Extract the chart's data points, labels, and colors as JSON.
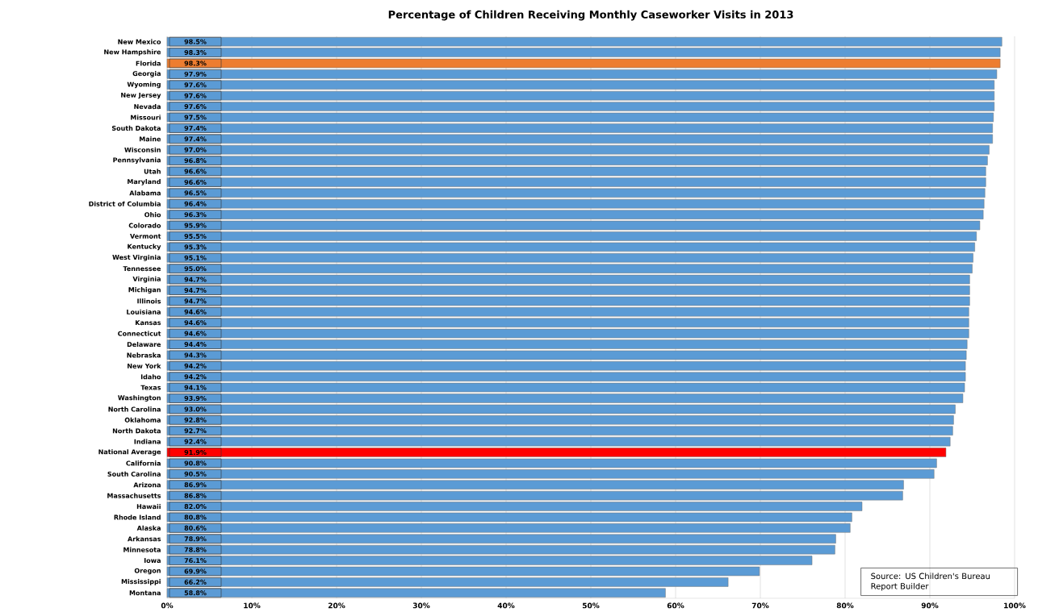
{
  "chart_data": {
    "type": "bar",
    "orientation": "horizontal",
    "title": "Percentage of Children Receiving Monthly Caseworker Visits in 2013",
    "categories": [
      "New Mexico",
      "New Hampshire",
      "Florida",
      "Georgia",
      "Wyoming",
      "New Jersey",
      "Nevada",
      "Missouri",
      "South Dakota",
      "Maine",
      "Wisconsin",
      "Pennsylvania",
      "Utah",
      "Maryland",
      "Alabama",
      "District of Columbia",
      "Ohio",
      "Colorado",
      "Vermont",
      "Kentucky",
      "West Virginia",
      "Tennessee",
      "Virginia",
      "Michigan",
      "Illinois",
      "Louisiana",
      "Kansas",
      "Connecticut",
      "Delaware",
      "Nebraska",
      "New York",
      "Idaho",
      "Texas",
      "Washington",
      "North Carolina",
      "Oklahoma",
      "North Dakota",
      "Indiana",
      "National Average",
      "California",
      "South Carolina",
      "Arizona",
      "Massachusetts",
      "Hawaii",
      "Rhode Island",
      "Alaska",
      "Arkansas",
      "Minnesota",
      "Iowa",
      "Oregon",
      "Mississippi",
      "Montana"
    ],
    "values": [
      98.5,
      98.3,
      98.3,
      97.9,
      97.6,
      97.6,
      97.6,
      97.5,
      97.4,
      97.4,
      97.0,
      96.8,
      96.6,
      96.6,
      96.5,
      96.4,
      96.3,
      95.9,
      95.5,
      95.3,
      95.1,
      95.0,
      94.7,
      94.7,
      94.7,
      94.6,
      94.6,
      94.6,
      94.4,
      94.3,
      94.2,
      94.2,
      94.1,
      93.9,
      93.0,
      92.8,
      92.7,
      92.4,
      91.9,
      90.8,
      90.5,
      86.9,
      86.8,
      82.0,
      80.8,
      80.6,
      78.9,
      78.8,
      76.1,
      69.9,
      66.2,
      58.8
    ],
    "value_labels": [
      "98.5%",
      "98.3%",
      "98.3%",
      "97.9%",
      "97.6%",
      "97.6%",
      "97.6%",
      "97.5%",
      "97.4%",
      "97.4%",
      "97.0%",
      "96.8%",
      "96.6%",
      "96.6%",
      "96.5%",
      "96.4%",
      "96.3%",
      "95.9%",
      "95.5%",
      "95.3%",
      "95.1%",
      "95.0%",
      "94.7%",
      "94.7%",
      "94.7%",
      "94.6%",
      "94.6%",
      "94.6%",
      "94.4%",
      "94.3%",
      "94.2%",
      "94.2%",
      "94.1%",
      "93.9%",
      "93.0%",
      "92.8%",
      "92.7%",
      "92.4%",
      "91.9%",
      "90.8%",
      "90.5%",
      "86.9%",
      "86.8%",
      "82.0%",
      "80.8%",
      "80.6%",
      "78.9%",
      "78.8%",
      "76.1%",
      "69.9%",
      "66.2%",
      "58.8%"
    ],
    "colors": [
      "#5b9bd5",
      "#5b9bd5",
      "#ed7d31",
      "#5b9bd5",
      "#5b9bd5",
      "#5b9bd5",
      "#5b9bd5",
      "#5b9bd5",
      "#5b9bd5",
      "#5b9bd5",
      "#5b9bd5",
      "#5b9bd5",
      "#5b9bd5",
      "#5b9bd5",
      "#5b9bd5",
      "#5b9bd5",
      "#5b9bd5",
      "#5b9bd5",
      "#5b9bd5",
      "#5b9bd5",
      "#5b9bd5",
      "#5b9bd5",
      "#5b9bd5",
      "#5b9bd5",
      "#5b9bd5",
      "#5b9bd5",
      "#5b9bd5",
      "#5b9bd5",
      "#5b9bd5",
      "#5b9bd5",
      "#5b9bd5",
      "#5b9bd5",
      "#5b9bd5",
      "#5b9bd5",
      "#5b9bd5",
      "#5b9bd5",
      "#5b9bd5",
      "#5b9bd5",
      "#ff0000",
      "#5b9bd5",
      "#5b9bd5",
      "#5b9bd5",
      "#5b9bd5",
      "#5b9bd5",
      "#5b9bd5",
      "#5b9bd5",
      "#5b9bd5",
      "#5b9bd5",
      "#5b9bd5",
      "#5b9bd5",
      "#5b9bd5",
      "#5b9bd5"
    ],
    "xlim": [
      0,
      100
    ],
    "xticks": [
      {
        "value": 0,
        "label": "0%"
      },
      {
        "value": 10,
        "label": "10%"
      },
      {
        "value": 20,
        "label": "20%"
      },
      {
        "value": 30,
        "label": "30%"
      },
      {
        "value": 40,
        "label": "40%"
      },
      {
        "value": 50,
        "label": "50%"
      },
      {
        "value": 60,
        "label": "60%"
      },
      {
        "value": 70,
        "label": "70%"
      },
      {
        "value": 80,
        "label": "80%"
      },
      {
        "value": 90,
        "label": "90%"
      },
      {
        "value": 100,
        "label": "100%"
      }
    ],
    "grid": "x",
    "annotations": [
      "Source: US Children's Bureau Report Builder"
    ]
  }
}
